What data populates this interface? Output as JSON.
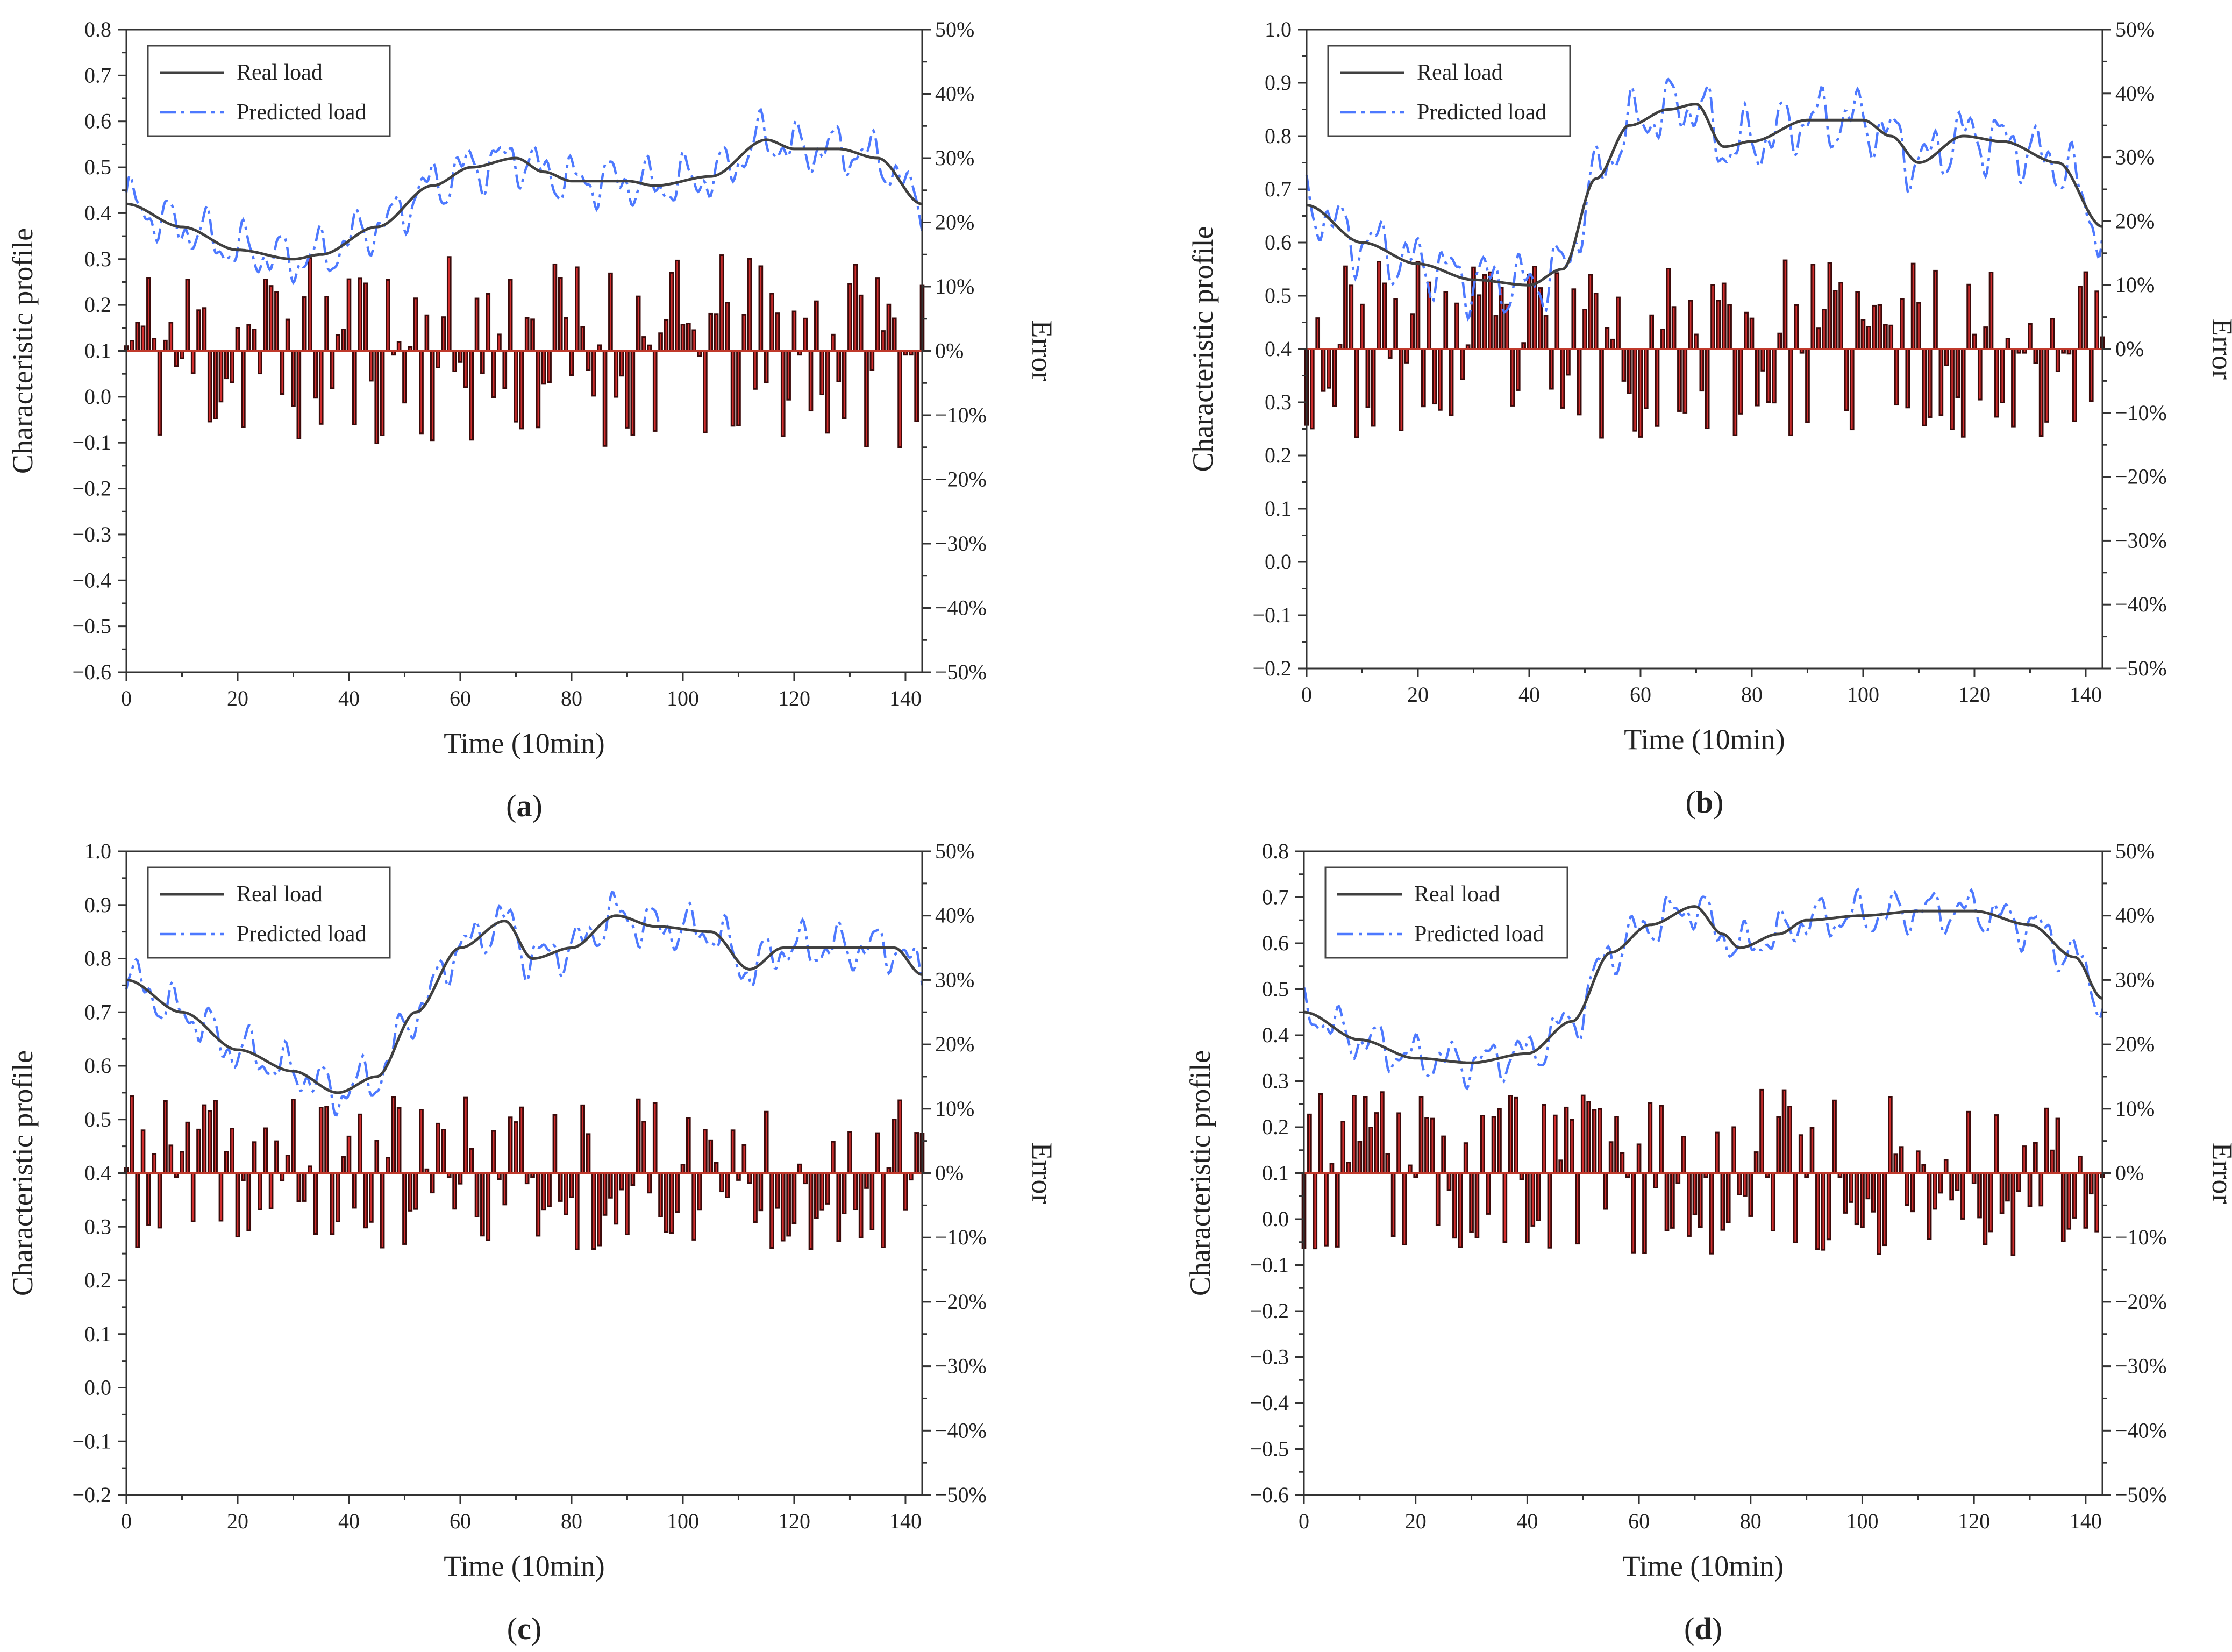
{
  "chart_data": [
    {
      "panel_label": "a",
      "type": "line+bar",
      "xlabel": "Time (10min)",
      "ylabel": "Characteristic profile",
      "y2label": "Error",
      "xlim": [
        0,
        143
      ],
      "xticks": [
        "0",
        "20",
        "40",
        "60",
        "80",
        "100",
        "120",
        "140"
      ],
      "ylim": [
        -0.6,
        0.8
      ],
      "yticks": [
        "-0.6",
        "-0.5",
        "-0.4",
        "-0.3",
        "-0.2",
        "-0.1",
        "0.0",
        "0.1",
        "0.2",
        "0.3",
        "0.4",
        "0.5",
        "0.6",
        "0.7",
        "0.8"
      ],
      "y2lim": [
        -50,
        50
      ],
      "y2ticks": [
        "-50%",
        "-40%",
        "-30%",
        "-20%",
        "-10%",
        "0%",
        "10%",
        "20%",
        "30%",
        "40%",
        "50%"
      ],
      "legend": [
        "Real load",
        "Predicted load"
      ],
      "real_load_keypoints": [
        [
          0,
          0.42
        ],
        [
          10,
          0.37
        ],
        [
          20,
          0.32
        ],
        [
          30,
          0.3
        ],
        [
          35,
          0.31
        ],
        [
          45,
          0.37
        ],
        [
          55,
          0.46
        ],
        [
          62,
          0.5
        ],
        [
          70,
          0.52
        ],
        [
          75,
          0.49
        ],
        [
          80,
          0.47
        ],
        [
          90,
          0.47
        ],
        [
          95,
          0.46
        ],
        [
          105,
          0.48
        ],
        [
          115,
          0.56
        ],
        [
          120,
          0.54
        ],
        [
          128,
          0.54
        ],
        [
          135,
          0.52
        ],
        [
          143,
          0.42
        ]
      ],
      "prediction_noise": 0.07,
      "error_amplitude": 15,
      "seed": 11
    },
    {
      "panel_label": "b",
      "type": "line+bar",
      "xlabel": "Time (10min)",
      "ylabel": "Characteristic profile",
      "y2label": "Error",
      "xlim": [
        0,
        143
      ],
      "xticks": [
        "0",
        "20",
        "40",
        "60",
        "80",
        "100",
        "120",
        "140"
      ],
      "ylim": [
        -0.2,
        1.0
      ],
      "yticks": [
        "-0.2",
        "-0.1",
        "0.0",
        "0.1",
        "0.2",
        "0.3",
        "0.4",
        "0.5",
        "0.6",
        "0.7",
        "0.8",
        "0.9",
        "1.0"
      ],
      "y2lim": [
        -50,
        50
      ],
      "y2ticks": [
        "-50%",
        "-40%",
        "-30%",
        "-20%",
        "-10%",
        "0%",
        "10%",
        "20%",
        "30%",
        "40%",
        "50%"
      ],
      "legend": [
        "Real load",
        "Predicted load"
      ],
      "real_load_keypoints": [
        [
          0,
          0.67
        ],
        [
          10,
          0.6
        ],
        [
          20,
          0.56
        ],
        [
          30,
          0.53
        ],
        [
          40,
          0.52
        ],
        [
          46,
          0.55
        ],
        [
          52,
          0.72
        ],
        [
          58,
          0.82
        ],
        [
          65,
          0.85
        ],
        [
          70,
          0.86
        ],
        [
          75,
          0.78
        ],
        [
          80,
          0.79
        ],
        [
          90,
          0.83
        ],
        [
          100,
          0.83
        ],
        [
          105,
          0.8
        ],
        [
          110,
          0.75
        ],
        [
          118,
          0.8
        ],
        [
          125,
          0.79
        ],
        [
          135,
          0.75
        ],
        [
          143,
          0.63
        ]
      ],
      "prediction_noise": 0.075,
      "error_amplitude": 14,
      "seed": 23
    },
    {
      "panel_label": "c",
      "type": "line+bar",
      "xlabel": "Time (10min)",
      "ylabel": "Characteristic profile",
      "y2label": "Error",
      "xlim": [
        0,
        143
      ],
      "xticks": [
        "0",
        "20",
        "40",
        "60",
        "80",
        "100",
        "120",
        "140"
      ],
      "ylim": [
        -0.2,
        1.0
      ],
      "yticks": [
        "-0.2",
        "-0.1",
        "0.0",
        "0.1",
        "0.2",
        "0.3",
        "0.4",
        "0.5",
        "0.6",
        "0.7",
        "0.8",
        "0.9",
        "1.0"
      ],
      "y2lim": [
        -50,
        50
      ],
      "y2ticks": [
        "-50%",
        "-40%",
        "-30%",
        "-20%",
        "-10%",
        "0%",
        "10%",
        "20%",
        "30%",
        "40%",
        "50%"
      ],
      "legend": [
        "Real load",
        "Predicted load"
      ],
      "real_load_keypoints": [
        [
          0,
          0.76
        ],
        [
          10,
          0.7
        ],
        [
          20,
          0.63
        ],
        [
          30,
          0.59
        ],
        [
          38,
          0.55
        ],
        [
          45,
          0.58
        ],
        [
          52,
          0.7
        ],
        [
          60,
          0.82
        ],
        [
          68,
          0.87
        ],
        [
          73,
          0.8
        ],
        [
          80,
          0.82
        ],
        [
          88,
          0.88
        ],
        [
          95,
          0.86
        ],
        [
          105,
          0.85
        ],
        [
          112,
          0.78
        ],
        [
          118,
          0.82
        ],
        [
          130,
          0.82
        ],
        [
          138,
          0.82
        ],
        [
          143,
          0.77
        ]
      ],
      "prediction_noise": 0.055,
      "error_amplitude": 12,
      "seed": 37
    },
    {
      "panel_label": "d",
      "type": "line+bar",
      "xlabel": "Time (10min)",
      "ylabel": "Characteristic profile",
      "y2label": "Error",
      "xlim": [
        0,
        143
      ],
      "xticks": [
        "0",
        "20",
        "40",
        "60",
        "80",
        "100",
        "120",
        "140"
      ],
      "ylim": [
        -0.6,
        0.8
      ],
      "yticks": [
        "-0.6",
        "-0.5",
        "-0.4",
        "-0.3",
        "-0.2",
        "-0.1",
        "0.0",
        "0.1",
        "0.2",
        "0.3",
        "0.4",
        "0.5",
        "0.6",
        "0.7",
        "0.8"
      ],
      "y2lim": [
        -50,
        50
      ],
      "y2ticks": [
        "-50%",
        "-40%",
        "-30%",
        "-20%",
        "-10%",
        "0%",
        "10%",
        "20%",
        "30%",
        "40%",
        "50%"
      ],
      "legend": [
        "Real load",
        "Predicted load"
      ],
      "real_load_keypoints": [
        [
          0,
          0.45
        ],
        [
          10,
          0.39
        ],
        [
          20,
          0.35
        ],
        [
          30,
          0.34
        ],
        [
          40,
          0.36
        ],
        [
          48,
          0.43
        ],
        [
          55,
          0.58
        ],
        [
          62,
          0.64
        ],
        [
          70,
          0.68
        ],
        [
          75,
          0.62
        ],
        [
          78,
          0.59
        ],
        [
          85,
          0.62
        ],
        [
          90,
          0.65
        ],
        [
          100,
          0.66
        ],
        [
          110,
          0.67
        ],
        [
          120,
          0.67
        ],
        [
          130,
          0.64
        ],
        [
          138,
          0.57
        ],
        [
          143,
          0.48
        ]
      ],
      "prediction_noise": 0.06,
      "error_amplitude": 13,
      "seed": 53
    }
  ],
  "colors": {
    "real_line": "#404040",
    "predicted_line": "#4d79ff",
    "bar_fill": "#d32f2f",
    "bar_stroke": "#3a0a0a",
    "axis": "#333333"
  }
}
